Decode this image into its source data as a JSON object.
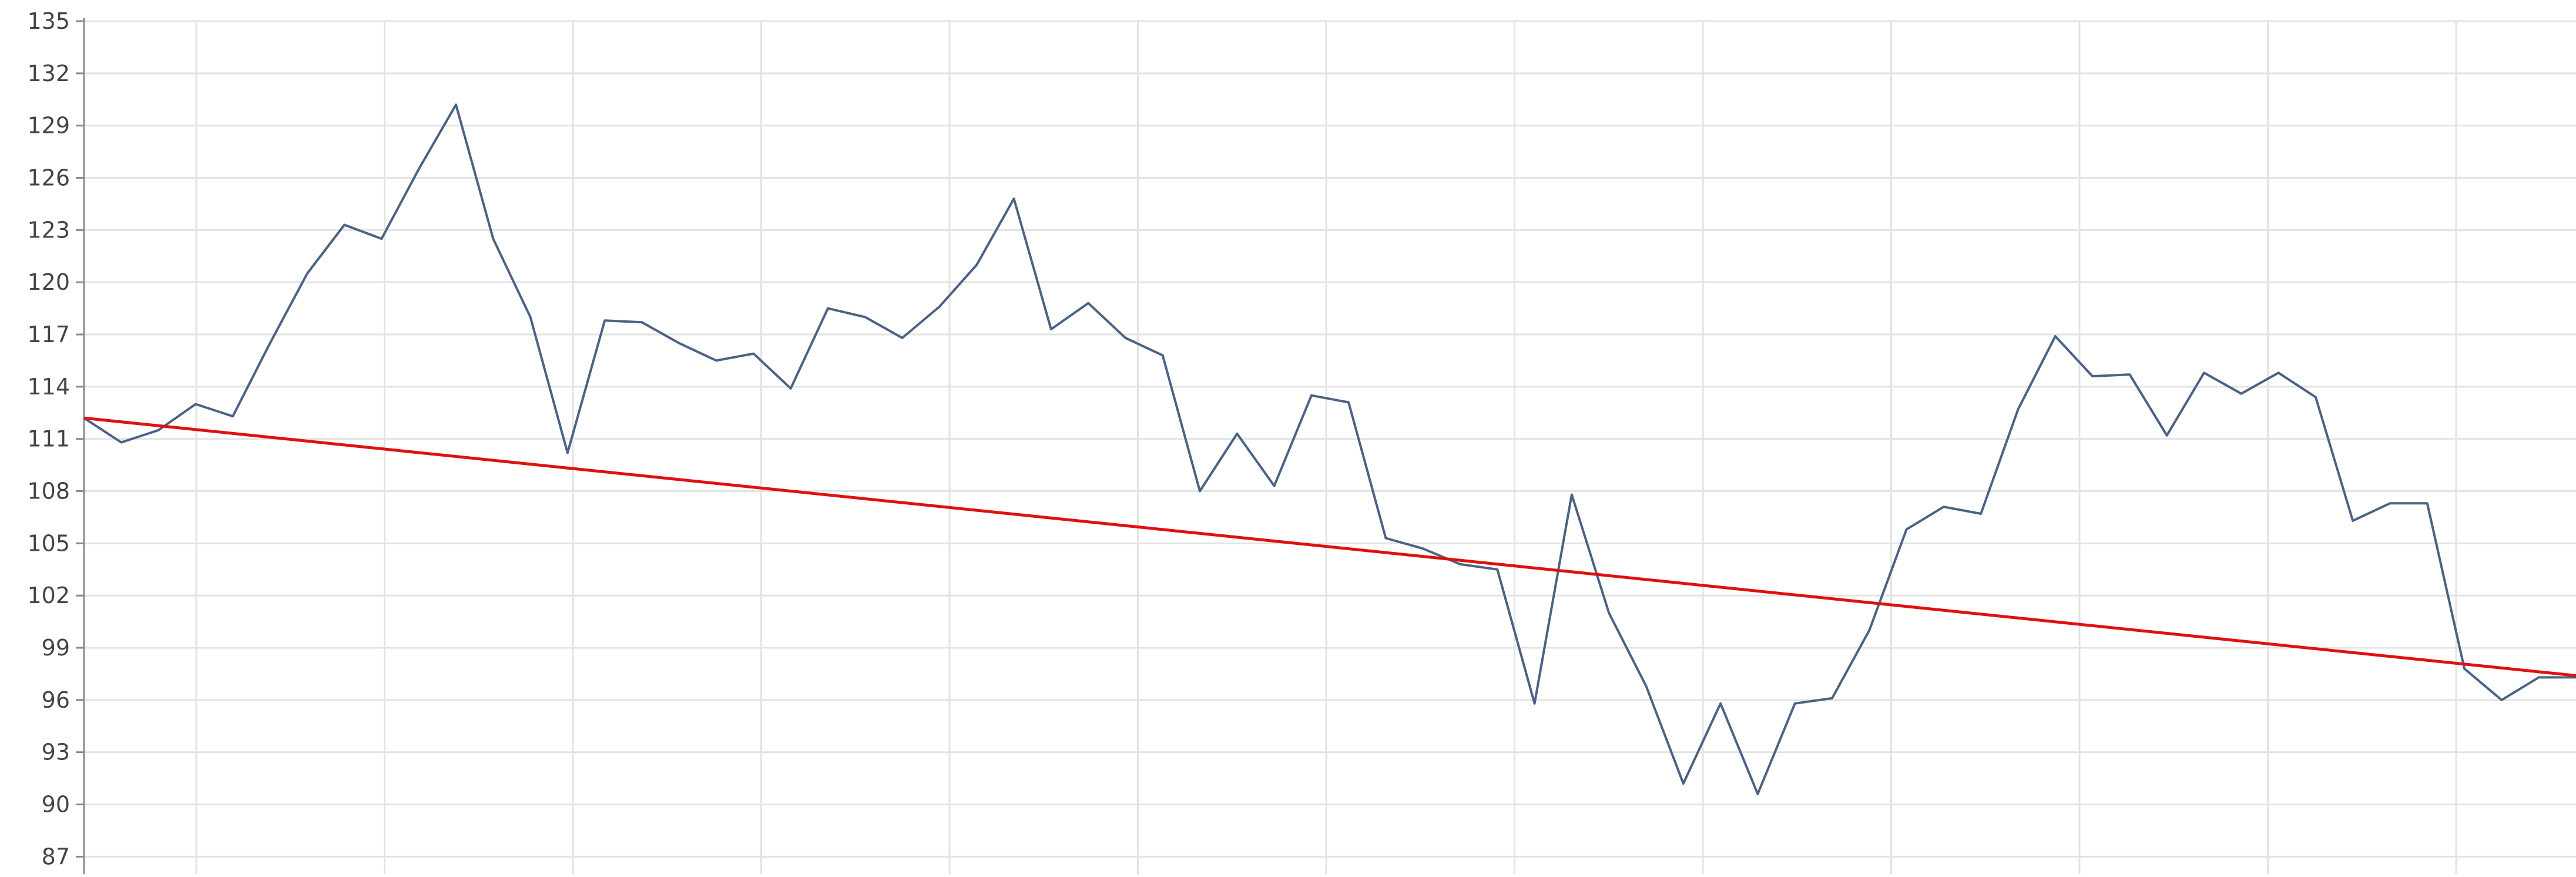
{
  "chart_data": {
    "type": "line",
    "ylim": [
      86,
      135
    ],
    "yticks": [
      135,
      132,
      129,
      126,
      123,
      120,
      117,
      114,
      111,
      108,
      105,
      102,
      99,
      96,
      93,
      90,
      87
    ],
    "x_count": 68,
    "grid": true,
    "series": [
      {
        "values": [
          112.2,
          110.8,
          111.5,
          113.0,
          112.3,
          116.5,
          120.5,
          123.3,
          122.5,
          126.5,
          130.2,
          122.5,
          118.0,
          110.2,
          117.8,
          117.7,
          116.5,
          115.5,
          115.9,
          113.9,
          118.5,
          118.0,
          116.8,
          118.6,
          121.0,
          124.8,
          117.3,
          118.8,
          116.8,
          115.8,
          108.0,
          111.3,
          108.3,
          113.5,
          113.1,
          105.3,
          104.7,
          103.8,
          103.5,
          95.8,
          107.8,
          101.0,
          96.8,
          91.2,
          95.8,
          90.6,
          95.8,
          96.1,
          100.0,
          105.8,
          107.1,
          106.7,
          112.7,
          116.9,
          114.6,
          114.7,
          111.2,
          114.8,
          113.6,
          114.8,
          113.4,
          106.3,
          107.3,
          107.3,
          97.8,
          96.0,
          97.3,
          97.3
        ],
        "color": "#4a6283"
      },
      {
        "values": [
          112.2,
          97.4
        ],
        "color": "#e01010"
      }
    ]
  }
}
